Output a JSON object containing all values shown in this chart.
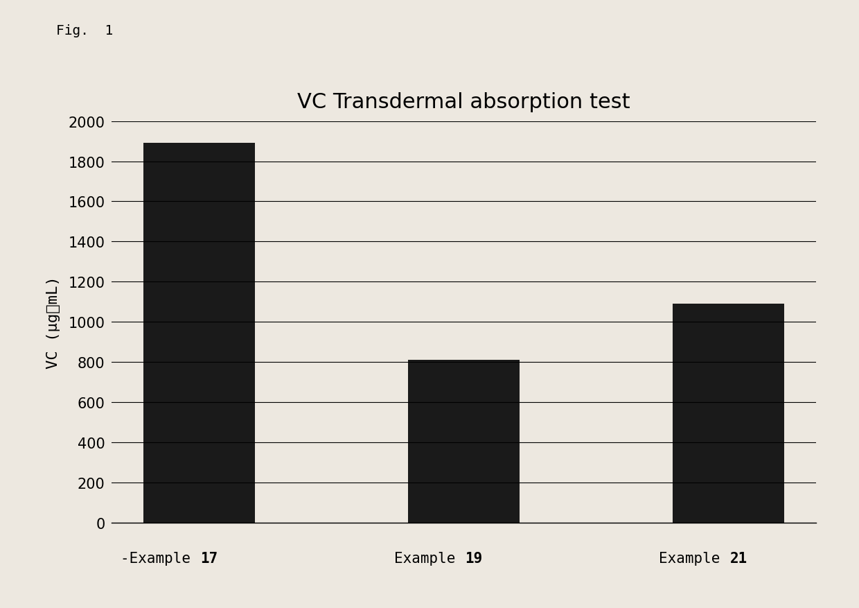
{
  "title": "VC Transdermal absorption test",
  "categories": [
    "-Example 17",
    "Example 19",
    "Example 21"
  ],
  "label_normal": [
    "-Example ",
    "Example ",
    "Example "
  ],
  "label_bold": [
    "17",
    "19",
    "21"
  ],
  "values": [
    1890,
    810,
    1090
  ],
  "ylabel": "VC (μg／mL)",
  "ylim": [
    0,
    2000
  ],
  "yticks": [
    0,
    200,
    400,
    600,
    800,
    1000,
    1200,
    1400,
    1600,
    1800,
    2000
  ],
  "bar_color": "#1a1a1a",
  "background_color": "#ede8e0",
  "fig_label": "Fig.  1",
  "title_fontsize": 22,
  "ylabel_fontsize": 16,
  "tick_fontsize": 15,
  "xlabel_fontsize": 15
}
